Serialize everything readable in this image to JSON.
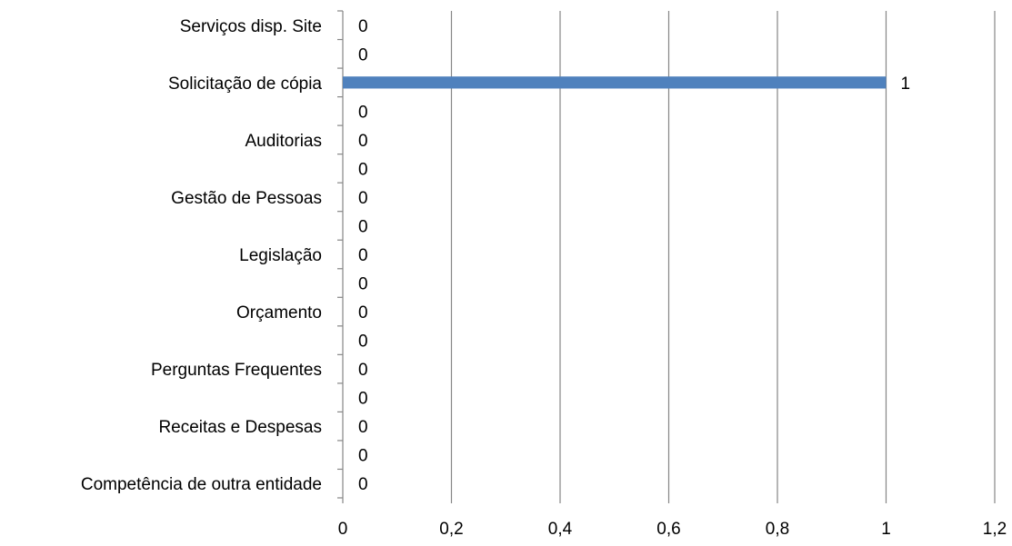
{
  "chart_data": {
    "type": "bar",
    "orientation": "horizontal",
    "categories": [
      "Serviços disp. Site",
      "",
      "Solicitação de cópia",
      "",
      "Auditorias",
      "",
      "Gestão de Pessoas",
      "",
      "Legislação",
      "",
      "Orçamento",
      "",
      "Perguntas Frequentes",
      "",
      "Receitas e Despesas",
      "",
      "Competência de outra entidade"
    ],
    "values": [
      0,
      0,
      1,
      0,
      0,
      0,
      0,
      0,
      0,
      0,
      0,
      0,
      0,
      0,
      0,
      0,
      0
    ],
    "data_labels": [
      "0",
      "0",
      "1",
      "0",
      "0",
      "0",
      "0",
      "0",
      "0",
      "0",
      "0",
      "0",
      "0",
      "0",
      "0",
      "0",
      "0"
    ],
    "x_ticks": [
      "0",
      "0,2",
      "0,4",
      "0,6",
      "0,8",
      "1",
      "1,2"
    ],
    "xlim": [
      0,
      1.2
    ],
    "grid": "vertical",
    "legend": "none",
    "colors": {
      "bar": "#4f81bd",
      "grid": "#868686",
      "axis": "#868686",
      "text": "#000000"
    }
  }
}
